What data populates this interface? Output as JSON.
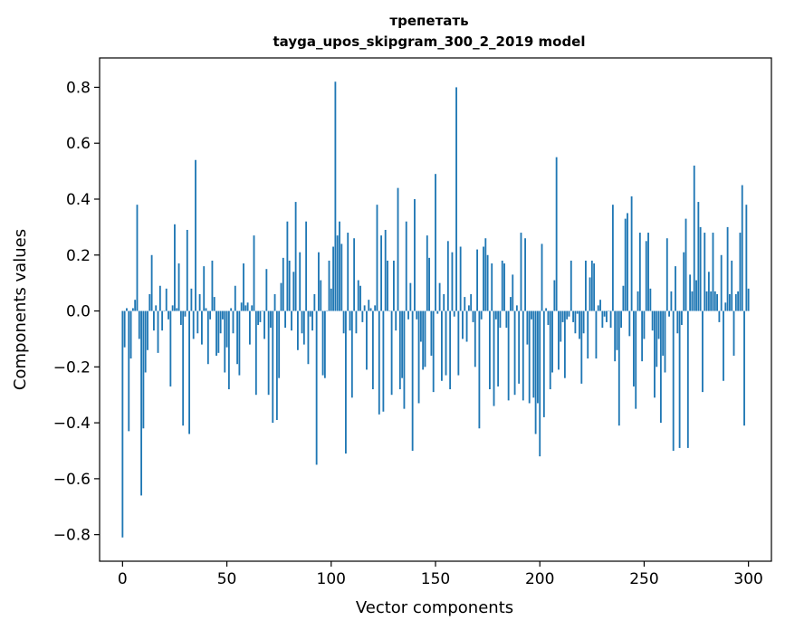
{
  "chart_data": {
    "type": "bar",
    "title": "трепетать",
    "subtitle": "tayga_upos_skipgram_300_2_2019 model",
    "xlabel": "Vector components",
    "ylabel": "Components values",
    "xlim": [
      -11,
      311
    ],
    "ylim": [
      -0.895,
      0.905
    ],
    "xticks": [
      0,
      50,
      100,
      150,
      200,
      250,
      300
    ],
    "yticks": [
      -0.8,
      -0.6,
      -0.4,
      -0.2,
      0.0,
      0.2,
      0.4,
      0.6,
      0.8
    ],
    "ytick_labels": [
      "−0.8",
      "−0.6",
      "−0.4",
      "−0.2",
      "0.0",
      "0.2",
      "0.4",
      "0.6",
      "0.8"
    ],
    "xtick_labels": [
      "0",
      "50",
      "100",
      "150",
      "200",
      "250",
      "300"
    ],
    "bar_color": "#1f77b4",
    "grid": false,
    "legend": "none",
    "values": [
      -0.81,
      -0.13,
      0.01,
      -0.43,
      -0.17,
      0.01,
      0.04,
      0.38,
      -0.1,
      -0.66,
      -0.42,
      -0.22,
      -0.14,
      0.06,
      0.2,
      -0.07,
      0.02,
      -0.15,
      0.09,
      -0.07,
      0.0,
      0.08,
      -0.03,
      -0.27,
      0.02,
      0.31,
      0.01,
      0.17,
      -0.05,
      -0.41,
      -0.02,
      0.29,
      -0.44,
      0.08,
      -0.1,
      0.54,
      -0.08,
      0.06,
      -0.12,
      0.16,
      0.01,
      -0.19,
      -0.03,
      0.18,
      0.05,
      -0.16,
      -0.15,
      -0.08,
      -0.03,
      -0.22,
      -0.13,
      -0.28,
      0.01,
      -0.08,
      0.09,
      -0.19,
      -0.23,
      0.03,
      0.17,
      0.02,
      0.03,
      -0.12,
      0.02,
      0.27,
      -0.3,
      -0.05,
      -0.04,
      0.0,
      -0.1,
      0.15,
      -0.3,
      -0.06,
      -0.4,
      0.06,
      -0.39,
      -0.24,
      0.1,
      0.19,
      -0.06,
      0.32,
      0.18,
      -0.07,
      0.14,
      0.39,
      -0.14,
      0.21,
      -0.08,
      -0.12,
      0.32,
      -0.19,
      -0.02,
      -0.07,
      0.06,
      -0.55,
      0.21,
      0.11,
      -0.23,
      -0.24,
      0.0,
      0.18,
      0.08,
      0.23,
      0.82,
      0.27,
      0.32,
      0.24,
      -0.08,
      -0.51,
      0.28,
      -0.07,
      -0.31,
      0.26,
      -0.08,
      0.11,
      0.09,
      -0.04,
      0.02,
      -0.21,
      0.04,
      0.01,
      -0.28,
      0.02,
      0.38,
      -0.37,
      0.27,
      -0.36,
      0.29,
      0.18,
      0.0,
      -0.3,
      0.18,
      -0.07,
      0.44,
      -0.28,
      -0.24,
      -0.35,
      0.32,
      -0.03,
      0.1,
      -0.5,
      0.4,
      -0.03,
      -0.33,
      -0.11,
      -0.21,
      -0.2,
      0.27,
      0.19,
      -0.16,
      -0.29,
      0.49,
      -0.01,
      0.1,
      -0.25,
      0.06,
      -0.23,
      0.25,
      -0.28,
      0.21,
      -0.02,
      0.8,
      -0.23,
      0.23,
      -0.1,
      0.05,
      -0.11,
      0.02,
      0.06,
      -0.04,
      -0.2,
      0.22,
      -0.42,
      -0.03,
      0.23,
      0.26,
      0.2,
      -0.28,
      0.17,
      -0.34,
      -0.03,
      -0.27,
      -0.06,
      0.18,
      0.17,
      -0.06,
      -0.32,
      0.05,
      0.13,
      -0.3,
      0.02,
      -0.26,
      0.28,
      -0.32,
      0.26,
      -0.12,
      -0.33,
      -0.03,
      -0.31,
      -0.44,
      -0.33,
      -0.52,
      0.24,
      -0.38,
      0.01,
      -0.05,
      -0.28,
      -0.22,
      0.11,
      0.55,
      -0.21,
      -0.11,
      -0.04,
      -0.24,
      -0.03,
      -0.02,
      0.18,
      -0.04,
      -0.08,
      -0.01,
      -0.1,
      -0.26,
      -0.08,
      0.18,
      -0.17,
      0.12,
      0.18,
      0.17,
      -0.17,
      0.02,
      0.04,
      -0.06,
      -0.02,
      -0.04,
      0.0,
      -0.06,
      0.38,
      -0.18,
      -0.14,
      -0.41,
      -0.06,
      0.09,
      0.33,
      0.35,
      -0.09,
      0.41,
      -0.27,
      -0.35,
      0.07,
      0.28,
      -0.18,
      -0.1,
      0.25,
      0.28,
      0.08,
      -0.07,
      -0.31,
      -0.2,
      -0.1,
      -0.4,
      -0.16,
      -0.22,
      0.26,
      -0.02,
      0.07,
      -0.5,
      0.16,
      -0.08,
      -0.49,
      -0.05,
      0.21,
      0.33,
      -0.49,
      0.13,
      0.07,
      0.52,
      0.11,
      0.39,
      0.3,
      -0.29,
      0.28,
      0.07,
      0.14,
      0.07,
      0.28,
      0.07,
      0.06,
      -0.04,
      0.2,
      -0.25,
      0.03,
      0.3,
      0.06,
      0.18,
      -0.16,
      0.06,
      0.07,
      0.28,
      0.45,
      -0.41,
      0.38,
      0.08
    ]
  }
}
